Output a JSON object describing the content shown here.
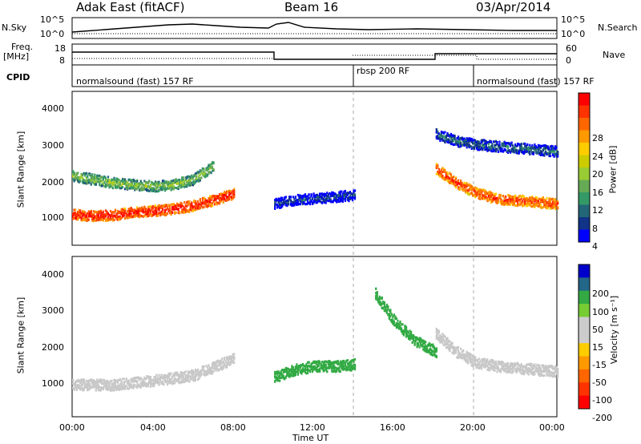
{
  "header": {
    "station": "Adak East (fitACF)",
    "beam": "Beam 16",
    "date": "03/Apr/2014"
  },
  "noise_panel": {
    "left_label": "N.Sky",
    "right_label": "N.Search",
    "left_ticks": [
      "10^5",
      "10^0"
    ],
    "right_ticks": [
      "10^5",
      "10^0"
    ]
  },
  "freq_panel": {
    "left_label_1": "Freq.",
    "left_label_2": "[MHz]",
    "right_label": "Nave",
    "left_ticks": [
      "18",
      "8"
    ],
    "right_ticks": [
      "60",
      "0"
    ]
  },
  "cpid_panel": {
    "label": "CPID",
    "modes": [
      {
        "name": "normalsound (fast) 157 RF",
        "start_hour": 0,
        "end_hour": 14
      },
      {
        "name": "rbsp 200 RF",
        "start_hour": 14,
        "end_hour": 20
      },
      {
        "name": "normalsound (fast) 157 RF",
        "start_hour": 20,
        "end_hour": 24
      }
    ]
  },
  "power_panel": {
    "ylabel": "Slant Range [km]",
    "yticks": [
      "4000",
      "3000",
      "2000",
      "1000"
    ],
    "colorbar_label": "Power [dB]",
    "colorbar_ticks": [
      "28",
      "24",
      "20",
      "16",
      "12",
      "8",
      "4"
    ],
    "colors": [
      "#ff0000",
      "#ff3300",
      "#ff6600",
      "#ff9900",
      "#ffcc00",
      "#cccc00",
      "#99cc33",
      "#66aa55",
      "#339966",
      "#226677",
      "#113388",
      "#0000ff"
    ]
  },
  "velocity_panel": {
    "ylabel": "Slant Range [km]",
    "yticks": [
      "4000",
      "3000",
      "2000",
      "1000"
    ],
    "colorbar_label": "Velocity [m s⁻¹]",
    "colorbar_ticks": [
      "200",
      "100",
      "50",
      "15",
      "-15",
      "-50",
      "-100",
      "-200"
    ],
    "colors": [
      "#0000cc",
      "#226688",
      "#33aa44",
      "#77cc33",
      "#cccccc",
      "#cccccc",
      "#ffcc00",
      "#ff9900",
      "#ff6600",
      "#ff3300",
      "#ff0000"
    ]
  },
  "xaxis": {
    "label": "Time UT",
    "ticks": [
      "00:00",
      "04:00",
      "08:00",
      "12:00",
      "16:00",
      "20:00",
      "00:00"
    ]
  },
  "chart_data": {
    "type": "heatmap",
    "x_range_hours": [
      0,
      24
    ],
    "y_range_km": [
      180,
      4600
    ],
    "power_bands": [
      {
        "t": [
          0,
          1,
          2,
          3,
          4,
          5,
          6,
          7,
          8
        ],
        "range_km": [
          1100,
          1050,
          1080,
          1150,
          1200,
          1250,
          1350,
          1500,
          1700
        ],
        "power_db": 28
      },
      {
        "t": [
          0,
          1,
          2,
          3,
          4,
          5,
          6,
          7
        ],
        "range_km": [
          2200,
          2100,
          2000,
          1950,
          1900,
          1950,
          2100,
          2500
        ],
        "power_db": 14
      },
      {
        "t": [
          18,
          19,
          20,
          21,
          22,
          23,
          24
        ],
        "range_km": [
          2400,
          2000,
          1700,
          1550,
          1500,
          1450,
          1400
        ],
        "power_db": 26
      },
      {
        "t": [
          18,
          19,
          20,
          21,
          22,
          23,
          24
        ],
        "range_km": [
          3400,
          3200,
          3100,
          3050,
          3000,
          2950,
          2900
        ],
        "power_db": 8
      },
      {
        "t": [
          10,
          11,
          12,
          13,
          14
        ],
        "range_km": [
          1400,
          1500,
          1550,
          1600,
          1650
        ],
        "power_db": 6
      }
    ],
    "velocity_bands": [
      {
        "t": [
          0,
          2,
          4,
          6,
          8
        ],
        "range_km": [
          1100,
          1080,
          1200,
          1350,
          1800
        ],
        "velocity": 0
      },
      {
        "t": [
          10,
          11,
          12,
          13,
          14
        ],
        "range_km": [
          1300,
          1500,
          1600,
          1600,
          1650
        ],
        "velocity": 60
      },
      {
        "t": [
          15,
          16,
          17,
          18
        ],
        "range_km": [
          3600,
          2800,
          2300,
          2000
        ],
        "velocity": 60
      },
      {
        "t": [
          18,
          19,
          20,
          21,
          22,
          23,
          24
        ],
        "range_km": [
          2500,
          2000,
          1700,
          1600,
          1550,
          1500,
          1450
        ],
        "velocity": 0
      }
    ]
  }
}
